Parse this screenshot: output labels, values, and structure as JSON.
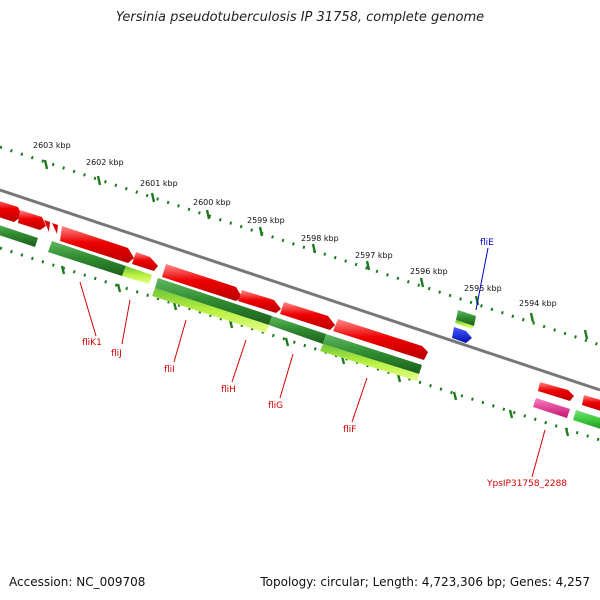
{
  "title": "Yersinia pseudotuberculosis IP 31758, complete genome",
  "footer": {
    "accession": "Accession: NC_009708",
    "summary": "Topology: circular; Length: 4,723,306 bp; Genes: 4,257"
  },
  "scale_labels": [
    "2603 kbp",
    "2602 kbp",
    "2601 kbp",
    "2600 kbp",
    "2599 kbp",
    "2598 kbp",
    "2597 kbp",
    "2596 kbp",
    "2595 kbp",
    "2594 kbp"
  ],
  "gene_labels": [
    "fliE",
    "fliK1",
    "fliJ",
    "fliI",
    "fliH",
    "fliG",
    "fliF",
    "YpsIP31758_2288"
  ],
  "colors": {
    "cds_red": "#e80000",
    "cds_green": "#2f8a2f",
    "cds_lime": "#b8f040",
    "cds_blue": "#0018e0",
    "cds_magenta": "#e0208a",
    "backbone": "#777777",
    "tick_green": "#1f7a1f",
    "label_red": "#d40000",
    "label_blue": "#0000c8"
  }
}
